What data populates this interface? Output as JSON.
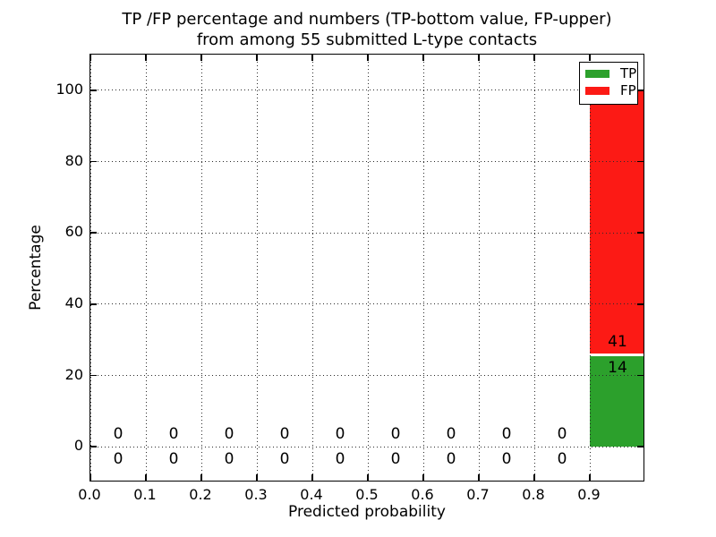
{
  "chart_data": {
    "type": "bar",
    "stacked": true,
    "title_line1": "TP /FP percentage and numbers (TP-bottom value, FP-upper)",
    "title_line2": "from among 55 submitted L-type contacts",
    "xlabel": "Predicted probability",
    "ylabel": "Percentage",
    "xlim": [
      0.0,
      1.0
    ],
    "ylim": [
      -10,
      110
    ],
    "xtick_values": [
      0.0,
      0.1,
      0.2,
      0.3,
      0.4,
      0.5,
      0.6,
      0.7,
      0.8,
      0.9
    ],
    "xticks": [
      "0.0",
      "0.1",
      "0.2",
      "0.3",
      "0.4",
      "0.5",
      "0.6",
      "0.7",
      "0.8",
      "0.9"
    ],
    "ytick_values": [
      0,
      20,
      40,
      60,
      80,
      100
    ],
    "yticks": [
      "0",
      "20",
      "40",
      "60",
      "80",
      "100"
    ],
    "grid": {
      "style": "dotted",
      "color": "#2b2b2b",
      "drawn_above_bars": true
    },
    "total_contacts": 55,
    "bin_width": 0.1,
    "bins": [
      {
        "x0": 0.0,
        "x1": 0.1,
        "tp": 0,
        "fp": 0
      },
      {
        "x0": 0.1,
        "x1": 0.2,
        "tp": 0,
        "fp": 0
      },
      {
        "x0": 0.2,
        "x1": 0.3,
        "tp": 0,
        "fp": 0
      },
      {
        "x0": 0.3,
        "x1": 0.4,
        "tp": 0,
        "fp": 0
      },
      {
        "x0": 0.4,
        "x1": 0.5,
        "tp": 0,
        "fp": 0
      },
      {
        "x0": 0.5,
        "x1": 0.6,
        "tp": 0,
        "fp": 0
      },
      {
        "x0": 0.6,
        "x1": 0.7,
        "tp": 0,
        "fp": 0
      },
      {
        "x0": 0.7,
        "x1": 0.8,
        "tp": 0,
        "fp": 0
      },
      {
        "x0": 0.8,
        "x1": 0.9,
        "tp": 0,
        "fp": 0
      },
      {
        "x0": 0.9,
        "x1": 1.0,
        "tp": 14,
        "fp": 41
      }
    ],
    "series": [
      {
        "name": "TP",
        "color": "#2ca02c",
        "values_pct": [
          0,
          0,
          0,
          0,
          0,
          0,
          0,
          0,
          0,
          25.45
        ]
      },
      {
        "name": "FP",
        "color": "#fc1a15",
        "values_pct": [
          0,
          0,
          0,
          0,
          0,
          0,
          0,
          0,
          0,
          74.55
        ]
      }
    ],
    "legend": {
      "position": "upper right",
      "entries": [
        {
          "label": "TP",
          "color": "#2ca02c"
        },
        {
          "label": "FP",
          "color": "#fc1a15"
        }
      ]
    }
  }
}
